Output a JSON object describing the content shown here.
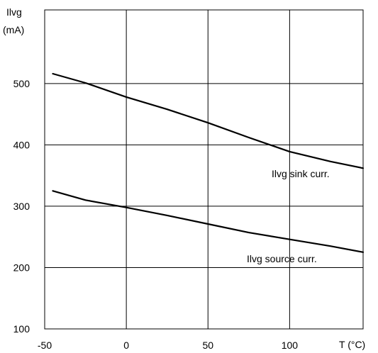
{
  "chart_data": {
    "type": "line",
    "ylabel_line1": "Ilvg",
    "ylabel_line2": "(mA)",
    "xlabel": "T (°C)",
    "xlim": [
      -50,
      145
    ],
    "ylim": [
      100,
      620
    ],
    "x_ticks": [
      -50,
      0,
      50,
      100
    ],
    "y_ticks": [
      100,
      200,
      300,
      400,
      500
    ],
    "x_gridlines": [
      0,
      50,
      100
    ],
    "y_gridlines": [
      200,
      300,
      400,
      500
    ],
    "grid": true,
    "series": [
      {
        "name": "Ilvg sink curr.",
        "x": [
          -45,
          -25,
          0,
          25,
          50,
          75,
          100,
          125,
          145
        ],
        "y": [
          516,
          501,
          478,
          458,
          436,
          412,
          389,
          373,
          362
        ]
      },
      {
        "name": "Ilvg source curr.",
        "x": [
          -45,
          -25,
          0,
          25,
          50,
          75,
          100,
          125,
          145
        ],
        "y": [
          325,
          310,
          298,
          285,
          271,
          257,
          246,
          235,
          225
        ]
      }
    ]
  }
}
